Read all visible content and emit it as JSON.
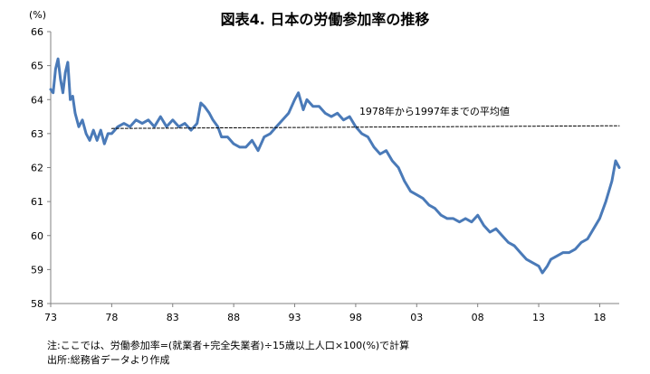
{
  "chart_data": {
    "type": "line",
    "title": "図表4. 日本の労働参加率の推移",
    "y_unit": "(%)",
    "ylim": [
      58,
      66
    ],
    "y_ticks": [
      "58",
      "59",
      "60",
      "61",
      "62",
      "63",
      "64",
      "65",
      "66"
    ],
    "x_ticks": [
      "73",
      "78",
      "83",
      "88",
      "93",
      "98",
      "03",
      "08",
      "13",
      "18"
    ],
    "x_range": [
      1973,
      2019.6
    ],
    "grid": false,
    "series": [
      {
        "color": "#4a7ab8",
        "points": [
          [
            1973.0,
            64.3
          ],
          [
            1973.2,
            64.2
          ],
          [
            1973.4,
            64.9
          ],
          [
            1973.6,
            65.2
          ],
          [
            1973.8,
            64.6
          ],
          [
            1974.0,
            64.2
          ],
          [
            1974.2,
            64.8
          ],
          [
            1974.4,
            65.1
          ],
          [
            1974.6,
            64.0
          ],
          [
            1974.8,
            64.1
          ],
          [
            1975.0,
            63.6
          ],
          [
            1975.3,
            63.2
          ],
          [
            1975.6,
            63.4
          ],
          [
            1975.9,
            63.0
          ],
          [
            1976.2,
            62.8
          ],
          [
            1976.5,
            63.1
          ],
          [
            1976.8,
            62.8
          ],
          [
            1977.1,
            63.1
          ],
          [
            1977.4,
            62.7
          ],
          [
            1977.7,
            63.0
          ],
          [
            1978.0,
            63.0
          ],
          [
            1978.5,
            63.2
          ],
          [
            1979.0,
            63.3
          ],
          [
            1979.5,
            63.2
          ],
          [
            1980.0,
            63.4
          ],
          [
            1980.5,
            63.3
          ],
          [
            1981.0,
            63.4
          ],
          [
            1981.5,
            63.2
          ],
          [
            1982.0,
            63.5
          ],
          [
            1982.5,
            63.2
          ],
          [
            1983.0,
            63.4
          ],
          [
            1983.5,
            63.2
          ],
          [
            1984.0,
            63.3
          ],
          [
            1984.5,
            63.1
          ],
          [
            1985.0,
            63.3
          ],
          [
            1985.3,
            63.9
          ],
          [
            1985.6,
            63.8
          ],
          [
            1986.0,
            63.6
          ],
          [
            1986.3,
            63.4
          ],
          [
            1986.7,
            63.2
          ],
          [
            1987.0,
            62.9
          ],
          [
            1987.5,
            62.9
          ],
          [
            1988.0,
            62.7
          ],
          [
            1988.5,
            62.6
          ],
          [
            1989.0,
            62.6
          ],
          [
            1989.5,
            62.8
          ],
          [
            1990.0,
            62.5
          ],
          [
            1990.5,
            62.9
          ],
          [
            1991.0,
            63.0
          ],
          [
            1991.5,
            63.2
          ],
          [
            1992.0,
            63.4
          ],
          [
            1992.5,
            63.6
          ],
          [
            1993.0,
            64.0
          ],
          [
            1993.3,
            64.2
          ],
          [
            1993.7,
            63.7
          ],
          [
            1994.0,
            64.0
          ],
          [
            1994.5,
            63.8
          ],
          [
            1995.0,
            63.8
          ],
          [
            1995.5,
            63.6
          ],
          [
            1996.0,
            63.5
          ],
          [
            1996.5,
            63.6
          ],
          [
            1997.0,
            63.4
          ],
          [
            1997.5,
            63.5
          ],
          [
            1998.0,
            63.2
          ],
          [
            1998.5,
            63.0
          ],
          [
            1999.0,
            62.9
          ],
          [
            1999.5,
            62.6
          ],
          [
            2000.0,
            62.4
          ],
          [
            2000.5,
            62.5
          ],
          [
            2001.0,
            62.2
          ],
          [
            2001.5,
            62.0
          ],
          [
            2002.0,
            61.6
          ],
          [
            2002.5,
            61.3
          ],
          [
            2003.0,
            61.2
          ],
          [
            2003.5,
            61.1
          ],
          [
            2004.0,
            60.9
          ],
          [
            2004.5,
            60.8
          ],
          [
            2005.0,
            60.6
          ],
          [
            2005.5,
            60.5
          ],
          [
            2006.0,
            60.5
          ],
          [
            2006.5,
            60.4
          ],
          [
            2007.0,
            60.5
          ],
          [
            2007.5,
            60.4
          ],
          [
            2008.0,
            60.6
          ],
          [
            2008.5,
            60.3
          ],
          [
            2009.0,
            60.1
          ],
          [
            2009.5,
            60.2
          ],
          [
            2010.0,
            60.0
          ],
          [
            2010.5,
            59.8
          ],
          [
            2011.0,
            59.7
          ],
          [
            2011.5,
            59.5
          ],
          [
            2012.0,
            59.3
          ],
          [
            2012.5,
            59.2
          ],
          [
            2013.0,
            59.1
          ],
          [
            2013.3,
            58.9
          ],
          [
            2013.7,
            59.1
          ],
          [
            2014.0,
            59.3
          ],
          [
            2014.5,
            59.4
          ],
          [
            2015.0,
            59.5
          ],
          [
            2015.5,
            59.5
          ],
          [
            2016.0,
            59.6
          ],
          [
            2016.5,
            59.8
          ],
          [
            2017.0,
            59.9
          ],
          [
            2017.5,
            60.2
          ],
          [
            2018.0,
            60.5
          ],
          [
            2018.5,
            61.0
          ],
          [
            2019.0,
            61.6
          ],
          [
            2019.3,
            62.2
          ],
          [
            2019.6,
            62.0
          ]
        ]
      },
      {
        "color": "#000000",
        "dashed": true,
        "points": [
          [
            1978.0,
            63.15
          ],
          [
            2019.6,
            63.23
          ]
        ]
      }
    ],
    "annotations": [
      {
        "text": "1978年から1997年までの平均値",
        "x": 1998.3,
        "y": 63.55
      }
    ]
  },
  "notes": {
    "line1": "注:ここでは、労働参加率=(就業者+完全失業者)÷15歳以上人口×100(%)で計算",
    "line2": "出所:総務省データより作成"
  }
}
